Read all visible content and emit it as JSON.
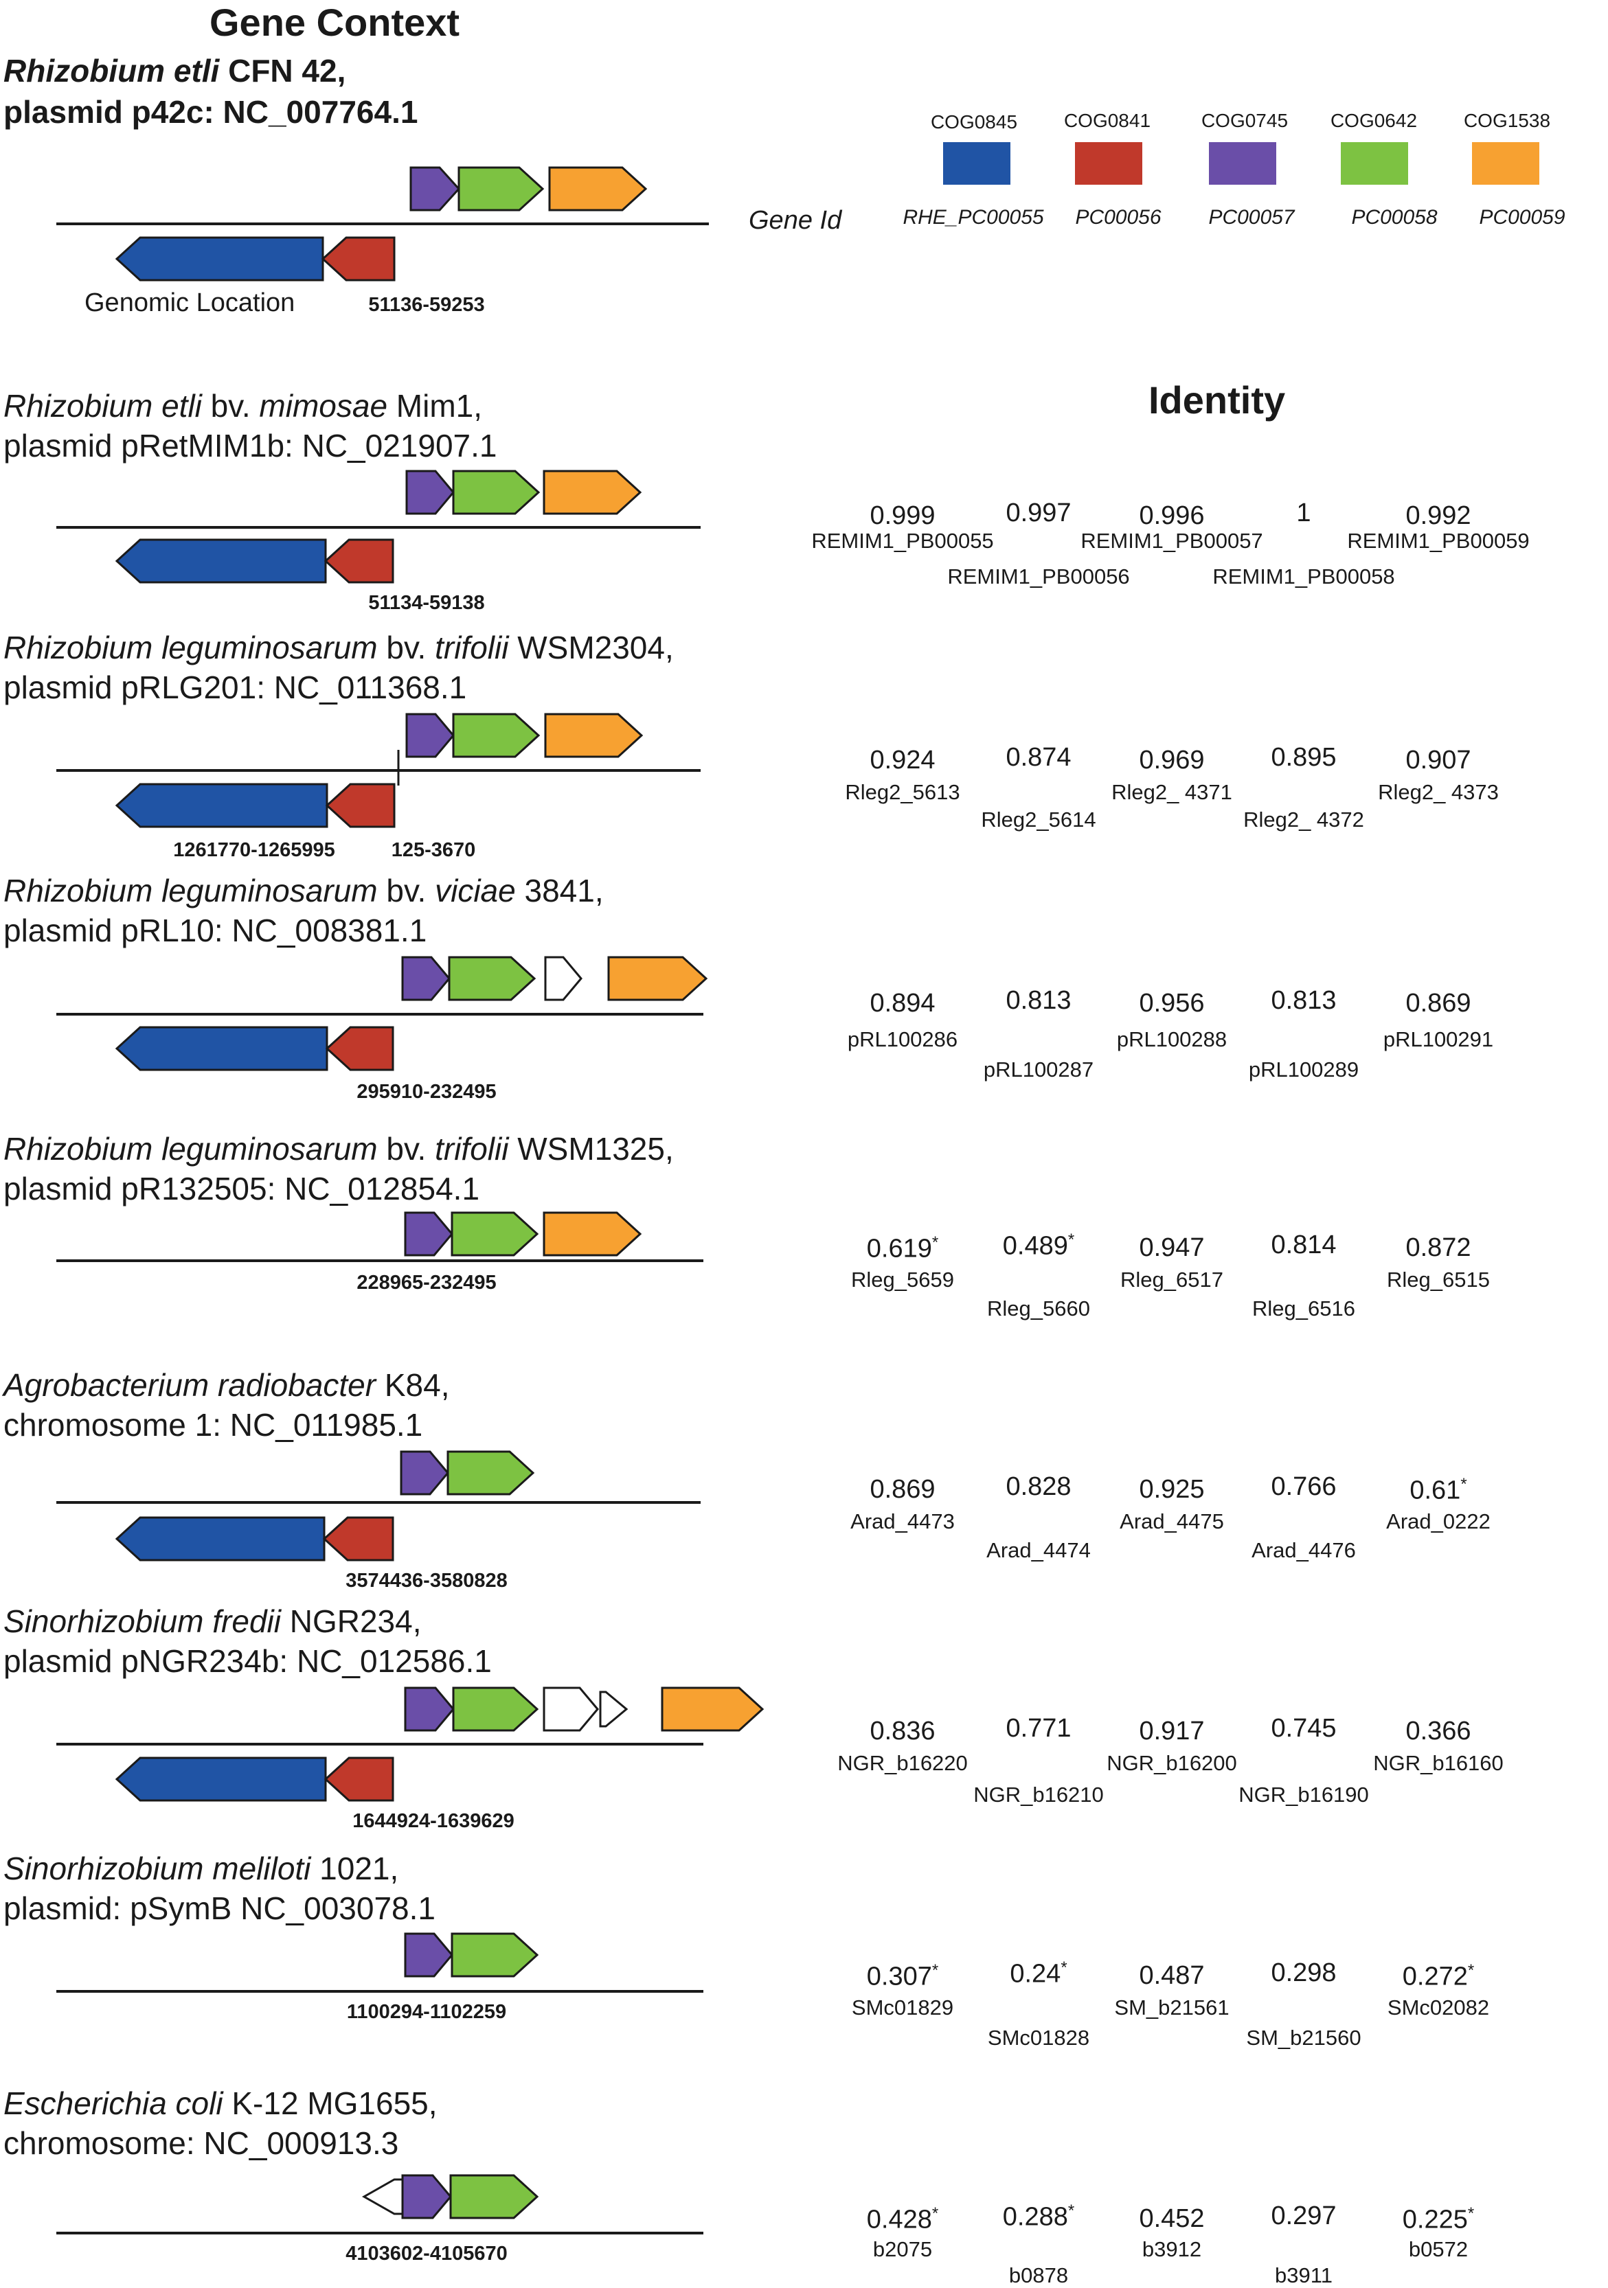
{
  "header": {
    "title": "Gene Context",
    "identity_title": "Identity"
  },
  "colors": {
    "COG0845": "#2054a5",
    "COG0841": "#c0392b",
    "COG0745": "#6a4ea8",
    "COG0642": "#7dc242",
    "COG1538": "#f7a131",
    "outline": "#1a1a1a",
    "other": "#ffffff"
  },
  "legend": {
    "gene_id_label": "Gene Id",
    "cogs": [
      "COG0845",
      "COG0841",
      "COG0745",
      "COG0642",
      "COG1538"
    ],
    "ids": [
      "RHE_PC00055",
      "PC00056",
      "PC00057",
      "PC00058",
      "PC00059"
    ]
  },
  "reference": {
    "name_line1": "Rhizobium etli CFN 42,",
    "name_line2": "plasmid p42c: NC_007764.1",
    "genomic_location_label": "Genomic Location",
    "location": "51136-59253"
  },
  "organisms": [
    {
      "line1_parts": [
        [
          "i",
          "Rhizobium etli"
        ],
        [
          "n",
          " bv. "
        ],
        [
          "i",
          "mimosae"
        ],
        [
          "n",
          " Mim1,"
        ]
      ],
      "line2": "plasmid pRetMIM1b: NC_021907.1",
      "locations": [
        "51134-59138"
      ],
      "values": [
        {
          "v": "0.999",
          "s": ""
        },
        {
          "v": "0.997",
          "s": ""
        },
        {
          "v": "0.996",
          "s": ""
        },
        {
          "v": "1",
          "s": ""
        },
        {
          "v": "0.992",
          "s": ""
        }
      ],
      "ids": [
        "REMIM1_PB00055",
        "REMIM1_PB00056",
        "REMIM1_PB00057",
        "REMIM1_PB00058",
        "REMIM1_PB00059"
      ]
    },
    {
      "line1_parts": [
        [
          "i",
          "Rhizobium leguminosarum"
        ],
        [
          "n",
          " bv. "
        ],
        [
          "i",
          "trifolii"
        ],
        [
          "n",
          " WSM2304,"
        ]
      ],
      "line2": "plasmid pRLG201: NC_011368.1",
      "locations": [
        "1261770-1265995",
        "125-3670"
      ],
      "values": [
        {
          "v": "0.924",
          "s": ""
        },
        {
          "v": "0.874",
          "s": ""
        },
        {
          "v": "0.969",
          "s": ""
        },
        {
          "v": "0.895",
          "s": ""
        },
        {
          "v": "0.907",
          "s": ""
        }
      ],
      "ids": [
        "Rleg2_5613",
        "Rleg2_5614",
        "Rleg2_ 4371",
        "Rleg2_ 4372",
        "Rleg2_ 4373"
      ]
    },
    {
      "line1_parts": [
        [
          "i",
          "Rhizobium leguminosarum"
        ],
        [
          "n",
          " bv. "
        ],
        [
          "i",
          "viciae"
        ],
        [
          "n",
          " 3841,"
        ]
      ],
      "line2": "plasmid pRL10: NC_008381.1",
      "locations": [
        "295910-232495"
      ],
      "values": [
        {
          "v": "0.894",
          "s": ""
        },
        {
          "v": "0.813",
          "s": ""
        },
        {
          "v": "0.956",
          "s": ""
        },
        {
          "v": "0.813",
          "s": ""
        },
        {
          "v": "0.869",
          "s": ""
        }
      ],
      "ids": [
        "pRL100286",
        "pRL100287",
        "pRL100288",
        "pRL100289",
        "pRL100291"
      ]
    },
    {
      "line1_parts": [
        [
          "i",
          "Rhizobium leguminosarum"
        ],
        [
          "n",
          " bv. "
        ],
        [
          "i",
          "trifolii"
        ],
        [
          "n",
          " WSM1325,"
        ]
      ],
      "line2": "plasmid pR132505: NC_012854.1",
      "locations": [
        "228965-232495"
      ],
      "values": [
        {
          "v": "0.619",
          "s": "*"
        },
        {
          "v": "0.489",
          "s": "*"
        },
        {
          "v": "0.947",
          "s": ""
        },
        {
          "v": "0.814",
          "s": ""
        },
        {
          "v": "0.872",
          "s": ""
        }
      ],
      "ids": [
        "Rleg_5659",
        "Rleg_5660",
        "Rleg_6517",
        "Rleg_6516",
        "Rleg_6515"
      ]
    },
    {
      "line1_parts": [
        [
          "i",
          "Agrobacterium radiobacter"
        ],
        [
          "n",
          " K84,"
        ]
      ],
      "line2": "chromosome 1: NC_011985.1",
      "locations": [
        "3574436-3580828"
      ],
      "values": [
        {
          "v": "0.869",
          "s": ""
        },
        {
          "v": "0.828",
          "s": ""
        },
        {
          "v": "0.925",
          "s": ""
        },
        {
          "v": "0.766",
          "s": ""
        },
        {
          "v": "0.61",
          "s": "*"
        }
      ],
      "ids": [
        "Arad_4473",
        "Arad_4474",
        "Arad_4475",
        "Arad_4476",
        "Arad_0222"
      ]
    },
    {
      "line1_parts": [
        [
          "i",
          "Sinorhizobium fredii"
        ],
        [
          "n",
          " NGR234,"
        ]
      ],
      "line2": "plasmid pNGR234b: NC_012586.1",
      "locations": [
        "1644924-1639629"
      ],
      "values": [
        {
          "v": "0.836",
          "s": ""
        },
        {
          "v": "0.771",
          "s": ""
        },
        {
          "v": "0.917",
          "s": ""
        },
        {
          "v": "0.745",
          "s": ""
        },
        {
          "v": "0.366",
          "s": ""
        }
      ],
      "ids": [
        "NGR_b16220",
        "NGR_b16210",
        "NGR_b16200",
        "NGR_b16190",
        "NGR_b16160"
      ]
    },
    {
      "line1_parts": [
        [
          "i",
          "Sinorhizobium meliloti"
        ],
        [
          "n",
          " 1021,"
        ]
      ],
      "line2": "plasmid: pSymB NC_003078.1",
      "locations": [
        "1100294-1102259"
      ],
      "values": [
        {
          "v": "0.307",
          "s": "*"
        },
        {
          "v": "0.24",
          "s": "*"
        },
        {
          "v": "0.487",
          "s": ""
        },
        {
          "v": "0.298",
          "s": ""
        },
        {
          "v": "0.272",
          "s": "*"
        }
      ],
      "ids": [
        "SMc01829",
        "SMc01828",
        "SM_b21561",
        "SM_b21560",
        "SMc02082"
      ]
    },
    {
      "line1_parts": [
        [
          "i",
          "Escherichia coli"
        ],
        [
          "n",
          " K-12 MG1655,"
        ]
      ],
      "line2": "chromosome: NC_000913.3",
      "locations": [
        "4103602-4105670"
      ],
      "values": [
        {
          "v": "0.428",
          "s": "*"
        },
        {
          "v": "0.288",
          "s": "*"
        },
        {
          "v": "0.452",
          "s": ""
        },
        {
          "v": "0.297",
          "s": ""
        },
        {
          "v": "0.225",
          "s": "*"
        }
      ],
      "ids": [
        "b2075",
        "b0878",
        "b3912",
        "b3911",
        "b0572"
      ]
    }
  ]
}
